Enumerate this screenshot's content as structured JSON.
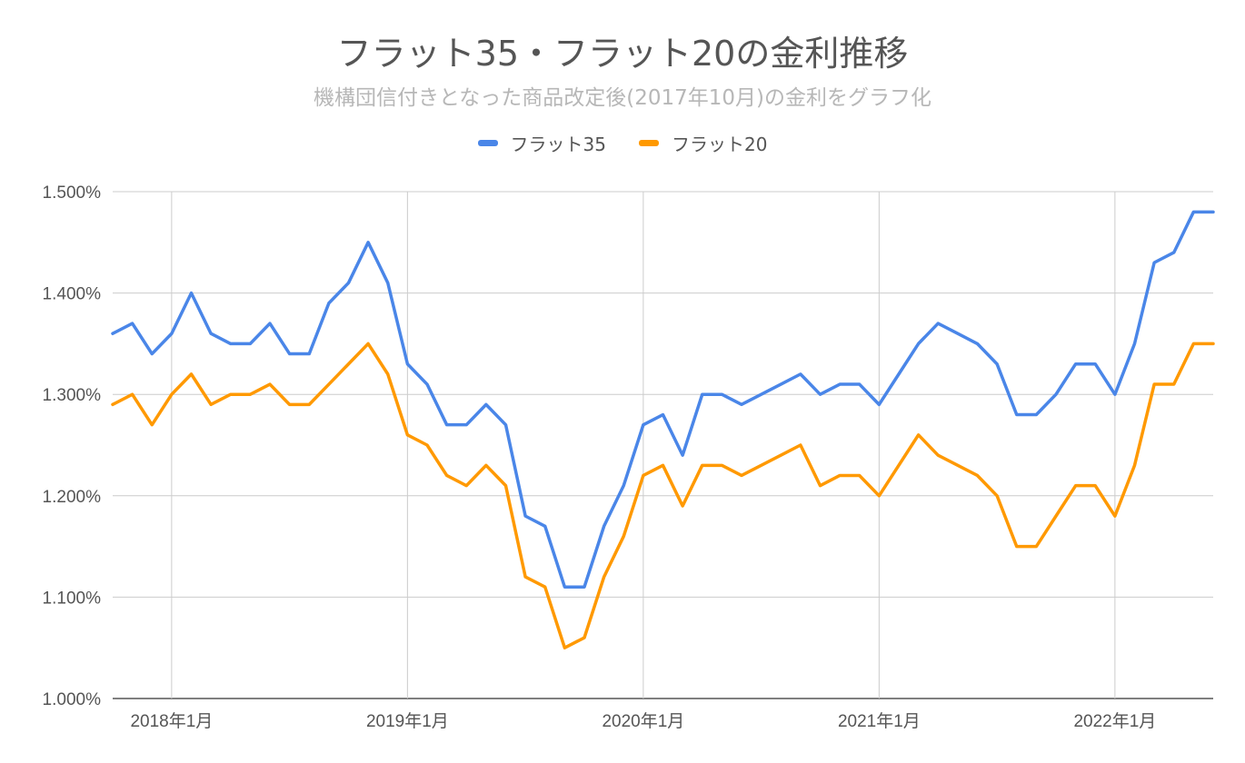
{
  "chart_data": {
    "type": "line",
    "title": "フラット35・フラット20の金利推移",
    "subtitle": "機構団信付きとなった商品改定後(2017年10月)の金利をグラフ化",
    "xlabel": "",
    "ylabel": "",
    "ylim": [
      1.0,
      1.5
    ],
    "yticks": [
      "1.000%",
      "1.100%",
      "1.200%",
      "1.300%",
      "1.400%",
      "1.500%"
    ],
    "xticks": [
      "2018年1月",
      "2019年1月",
      "2020年1月",
      "2021年1月",
      "2022年1月"
    ],
    "grid": true,
    "legend_position": "top",
    "x_start": "2017年10月",
    "series": [
      {
        "name": "フラット35",
        "color": "#4a86e8",
        "values": [
          1.36,
          1.37,
          1.34,
          1.36,
          1.4,
          1.36,
          1.35,
          1.35,
          1.37,
          1.34,
          1.34,
          1.39,
          1.41,
          1.45,
          1.41,
          1.33,
          1.31,
          1.27,
          1.27,
          1.29,
          1.27,
          1.18,
          1.17,
          1.11,
          1.11,
          1.17,
          1.21,
          1.27,
          1.28,
          1.24,
          1.3,
          1.3,
          1.29,
          1.3,
          1.31,
          1.32,
          1.3,
          1.31,
          1.31,
          1.29,
          1.32,
          1.35,
          1.37,
          1.36,
          1.35,
          1.33,
          1.28,
          1.28,
          1.3,
          1.33,
          1.33,
          1.3,
          1.35,
          1.43,
          1.44,
          1.48,
          1.48
        ]
      },
      {
        "name": "フラット20",
        "color": "#ff9900",
        "values": [
          1.29,
          1.3,
          1.27,
          1.3,
          1.32,
          1.29,
          1.3,
          1.3,
          1.31,
          1.29,
          1.29,
          1.31,
          1.33,
          1.35,
          1.32,
          1.26,
          1.25,
          1.22,
          1.21,
          1.23,
          1.21,
          1.12,
          1.11,
          1.05,
          1.06,
          1.12,
          1.16,
          1.22,
          1.23,
          1.19,
          1.23,
          1.23,
          1.22,
          1.23,
          1.24,
          1.25,
          1.21,
          1.22,
          1.22,
          1.2,
          1.23,
          1.26,
          1.24,
          1.23,
          1.22,
          1.2,
          1.15,
          1.15,
          1.18,
          1.21,
          1.21,
          1.18,
          1.23,
          1.31,
          1.31,
          1.35,
          1.35
        ]
      }
    ]
  }
}
